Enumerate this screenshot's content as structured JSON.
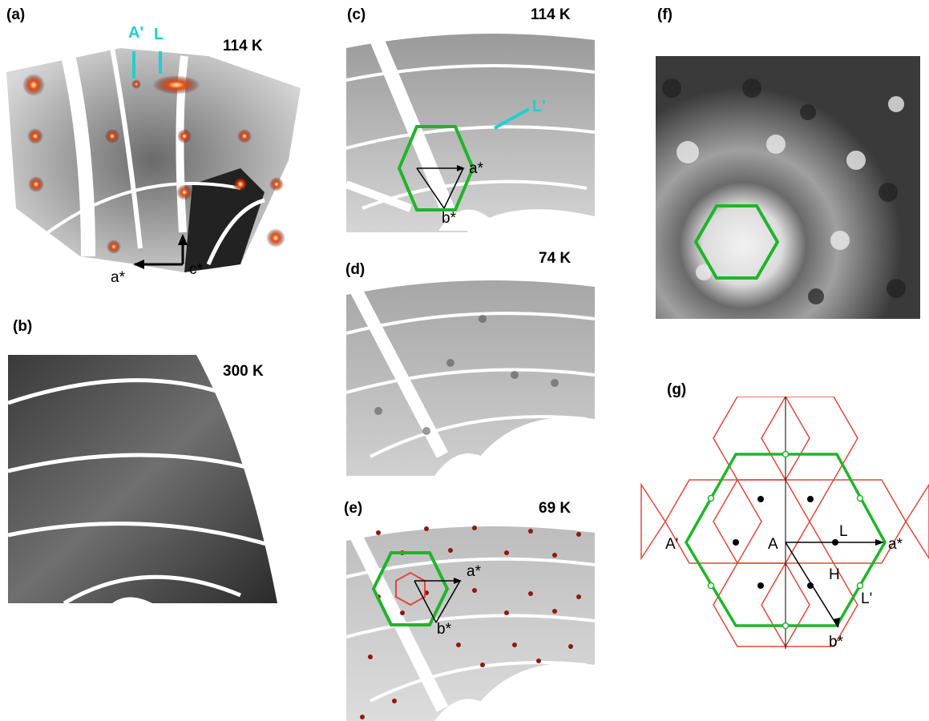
{
  "panels": {
    "a": {
      "label": "(a)",
      "temperature": "114 K",
      "axis_a": "a*",
      "axis_c": "c*",
      "marker_a": "A'",
      "marker_l": "L"
    },
    "b": {
      "label": "(b)",
      "temperature": "300 K"
    },
    "c": {
      "label": "(c)",
      "temperature": "114 K",
      "axis_a": "a*",
      "axis_b": "b*",
      "marker_l": "L'"
    },
    "d": {
      "label": "(d)",
      "temperature": "74 K"
    },
    "e": {
      "label": "(e)",
      "temperature": "69 K",
      "axis_a": "a*",
      "axis_b": "b*"
    },
    "f": {
      "label": "(f)"
    },
    "g": {
      "label": "(g)",
      "points": {
        "a_prime": "A'",
        "a": "A",
        "l": "L",
        "a_star": "a*",
        "h": "H",
        "l_prime": "L'",
        "b_star": "b*"
      }
    }
  },
  "colors": {
    "bz_green": "#1fb52a",
    "lattice_red": "#e0483c",
    "marker_cyan": "#1fd0d0",
    "peak_red": "#cc1f0a"
  }
}
